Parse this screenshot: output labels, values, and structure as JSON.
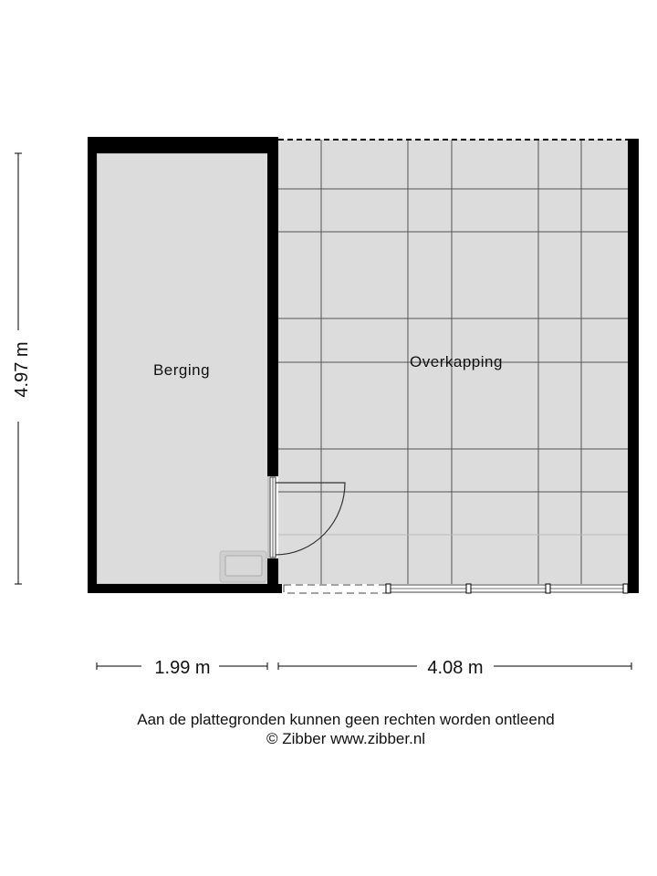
{
  "rooms": [
    {
      "name": "Berging"
    },
    {
      "name": "Overkapping"
    }
  ],
  "dimensions": {
    "height": "4.97 m",
    "width_left": "1.99 m",
    "width_right": "4.08 m"
  },
  "footer": {
    "disclaimer": "Aan de plattegronden kunnen geen rechten worden ontleend",
    "copyright": "© Zibber www.zibber.nl"
  },
  "colors": {
    "wall": "#000000",
    "floor": "#dcdcdc",
    "grid": "#555555"
  }
}
